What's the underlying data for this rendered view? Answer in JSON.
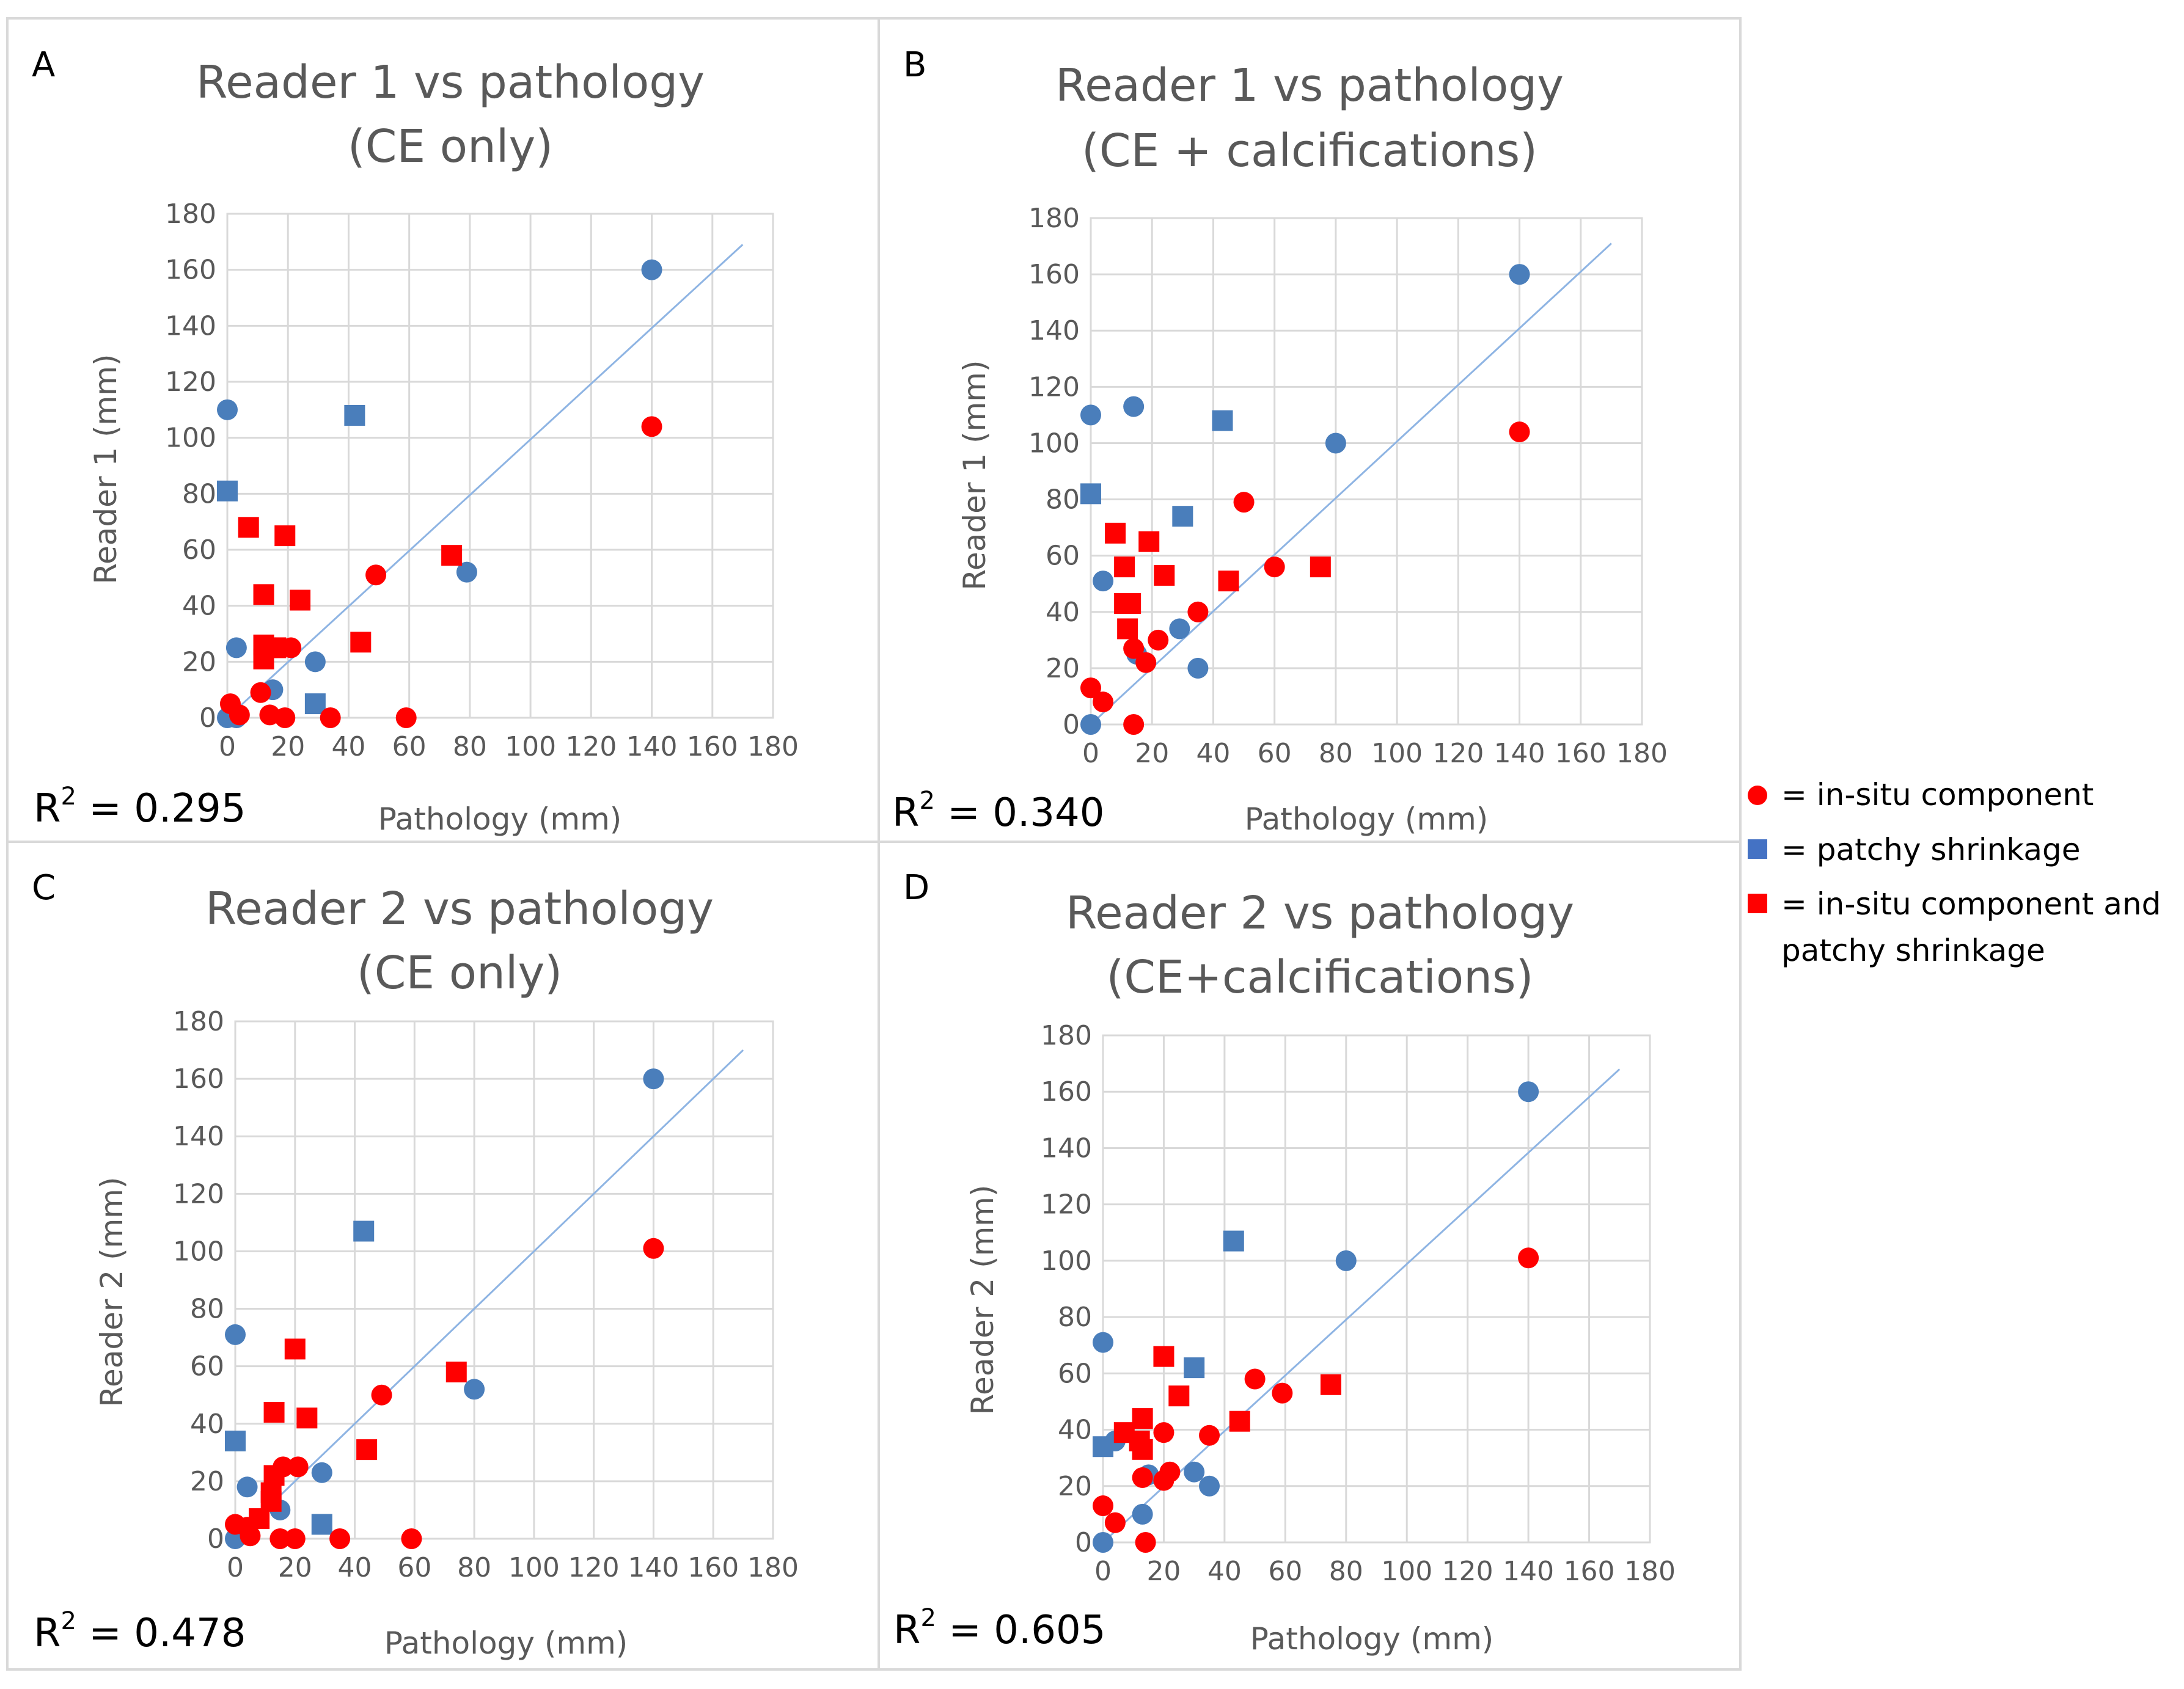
{
  "colors": {
    "blue": "#4a7ebb",
    "red": "#ff0000",
    "trendline": "#8eb4e3"
  },
  "legend": {
    "items": [
      {
        "symbol": "circle",
        "color": "#ff0000",
        "label": "= in-situ component"
      },
      {
        "symbol": "square",
        "color": "#4472c4",
        "label": "= patchy shrinkage"
      },
      {
        "symbol": "square",
        "color": "#ff0000",
        "label": "= in-situ component and",
        "label_line2": "patchy shrinkage"
      }
    ]
  },
  "chart_data": [
    {
      "panel": "A",
      "type": "scatter",
      "title_line1": "Reader 1 vs pathology",
      "title_line2": "(CE only)",
      "xlabel": "Pathology (mm)",
      "ylabel": "Reader 1 (mm)",
      "xlim": [
        0,
        180
      ],
      "ylim": [
        0,
        180
      ],
      "ticks": [
        0,
        20,
        40,
        60,
        80,
        100,
        120,
        140,
        160,
        180
      ],
      "r2_prefix": "R",
      "r2_sup": "2",
      "r2_value": " = 0.295",
      "trendline": [
        [
          0,
          0
        ],
        [
          170,
          169
        ]
      ],
      "series": [
        {
          "marker": "circle",
          "color": "blue",
          "points": [
            [
              0,
              110
            ],
            [
              140,
              160
            ],
            [
              79,
              52
            ],
            [
              3,
              25
            ],
            [
              0,
              0
            ],
            [
              3,
              0
            ],
            [
              15,
              10
            ],
            [
              16,
              25
            ],
            [
              29,
              20
            ]
          ]
        },
        {
          "marker": "square",
          "color": "blue",
          "points": [
            [
              0,
              81
            ],
            [
              42,
              108
            ],
            [
              29,
              5
            ]
          ]
        },
        {
          "marker": "circle",
          "color": "red",
          "points": [
            [
              140,
              104
            ],
            [
              49,
              51
            ],
            [
              21,
              25
            ],
            [
              11,
              9
            ],
            [
              1,
              5
            ],
            [
              4,
              1
            ],
            [
              14,
              1
            ],
            [
              19,
              0
            ],
            [
              34,
              0
            ],
            [
              59,
              0
            ]
          ]
        },
        {
          "marker": "square",
          "color": "red",
          "points": [
            [
              7,
              68
            ],
            [
              19,
              65
            ],
            [
              12,
              44
            ],
            [
              24,
              42
            ],
            [
              74,
              58
            ],
            [
              44,
              27
            ],
            [
              12,
              26
            ],
            [
              12,
              21
            ],
            [
              16,
              25
            ]
          ]
        }
      ]
    },
    {
      "panel": "B",
      "type": "scatter",
      "title_line1": "Reader 1 vs pathology",
      "title_line2": "(CE + calcifications)",
      "xlabel": "Pathology (mm)",
      "ylabel": "Reader 1 (mm)",
      "xlim": [
        0,
        180
      ],
      "ylim": [
        0,
        180
      ],
      "ticks": [
        0,
        20,
        40,
        60,
        80,
        100,
        120,
        140,
        160,
        180
      ],
      "r2_prefix": "R",
      "r2_sup": "2",
      "r2_value": " = 0.340",
      "trendline": [
        [
          0,
          0
        ],
        [
          170,
          171
        ]
      ],
      "series": [
        {
          "marker": "circle",
          "color": "blue",
          "points": [
            [
              0,
              110
            ],
            [
              14,
              113
            ],
            [
              140,
              160
            ],
            [
              80,
              100
            ],
            [
              4,
              51
            ],
            [
              29,
              34
            ],
            [
              35,
              20
            ],
            [
              15,
              25
            ],
            [
              0,
              0
            ]
          ]
        },
        {
          "marker": "square",
          "color": "blue",
          "points": [
            [
              0,
              82
            ],
            [
              43,
              108
            ],
            [
              30,
              74
            ]
          ]
        },
        {
          "marker": "circle",
          "color": "red",
          "points": [
            [
              140,
              104
            ],
            [
              50,
              79
            ],
            [
              60,
              56
            ],
            [
              35,
              40
            ],
            [
              22,
              30
            ],
            [
              18,
              22
            ],
            [
              14,
              27
            ],
            [
              0,
              13
            ],
            [
              4,
              8
            ],
            [
              14,
              0
            ]
          ]
        },
        {
          "marker": "square",
          "color": "red",
          "points": [
            [
              8,
              68
            ],
            [
              19,
              65
            ],
            [
              11,
              56
            ],
            [
              24,
              53
            ],
            [
              45,
              51
            ],
            [
              75,
              56
            ],
            [
              11,
              43
            ],
            [
              13,
              43
            ],
            [
              12,
              34
            ]
          ]
        }
      ]
    },
    {
      "panel": "C",
      "type": "scatter",
      "title_line1": "Reader 2 vs pathology",
      "title_line2": "(CE only)",
      "xlabel": "Pathology (mm)",
      "ylabel": "Reader 2 (mm)",
      "xlim": [
        0,
        180
      ],
      "ylim": [
        0,
        180
      ],
      "ticks": [
        0,
        20,
        40,
        60,
        80,
        100,
        120,
        140,
        160,
        180
      ],
      "r2_prefix": "R",
      "r2_sup": "2",
      "r2_value": " = 0.478",
      "trendline": [
        [
          0,
          0
        ],
        [
          170,
          170
        ]
      ],
      "series": [
        {
          "marker": "circle",
          "color": "blue",
          "points": [
            [
              0,
              71
            ],
            [
              140,
              160
            ],
            [
              80,
              52
            ],
            [
              4,
              18
            ],
            [
              15,
              10
            ],
            [
              29,
              23
            ],
            [
              0,
              0
            ]
          ]
        },
        {
          "marker": "square",
          "color": "blue",
          "points": [
            [
              0,
              34
            ],
            [
              43,
              107
            ],
            [
              29,
              5
            ]
          ]
        },
        {
          "marker": "circle",
          "color": "red",
          "points": [
            [
              140,
              101
            ],
            [
              49,
              50
            ],
            [
              21,
              25
            ],
            [
              16,
              25
            ],
            [
              0,
              5
            ],
            [
              4,
              4
            ],
            [
              15,
              0
            ],
            [
              20,
              0
            ],
            [
              35,
              0
            ],
            [
              59,
              0
            ],
            [
              5,
              1
            ]
          ]
        },
        {
          "marker": "square",
          "color": "red",
          "points": [
            [
              20,
              66
            ],
            [
              13,
              44
            ],
            [
              24,
              42
            ],
            [
              74,
              58
            ],
            [
              44,
              31
            ],
            [
              13,
              22
            ],
            [
              12,
              16
            ],
            [
              8,
              7
            ],
            [
              12,
              13
            ]
          ]
        }
      ]
    },
    {
      "panel": "D",
      "type": "scatter",
      "title_line1": "Reader 2 vs pathology",
      "title_line2": "(CE+calcifications)",
      "xlabel": "Pathology (mm)",
      "ylabel": "Reader 2 (mm)",
      "xlim": [
        0,
        180
      ],
      "ylim": [
        0,
        180
      ],
      "ticks": [
        0,
        20,
        40,
        60,
        80,
        100,
        120,
        140,
        160,
        180
      ],
      "r2_prefix": "R",
      "r2_sup": "2",
      "r2_value": " = 0.605",
      "trendline": [
        [
          0,
          0
        ],
        [
          170,
          168
        ]
      ],
      "series": [
        {
          "marker": "circle",
          "color": "blue",
          "points": [
            [
              0,
              71
            ],
            [
              140,
              160
            ],
            [
              80,
              100
            ],
            [
              4,
              36
            ],
            [
              13,
              10
            ],
            [
              15,
              24
            ],
            [
              30,
              25
            ],
            [
              35,
              20
            ],
            [
              0,
              0
            ]
          ]
        },
        {
          "marker": "square",
          "color": "blue",
          "points": [
            [
              0,
              34
            ],
            [
              43,
              107
            ],
            [
              30,
              62
            ]
          ]
        },
        {
          "marker": "circle",
          "color": "red",
          "points": [
            [
              140,
              101
            ],
            [
              50,
              58
            ],
            [
              59,
              53
            ],
            [
              35,
              38
            ],
            [
              20,
              39
            ],
            [
              22,
              25
            ],
            [
              20,
              22
            ],
            [
              13,
              23
            ],
            [
              0,
              13
            ],
            [
              4,
              7
            ],
            [
              14,
              0
            ]
          ]
        },
        {
          "marker": "square",
          "color": "red",
          "points": [
            [
              20,
              66
            ],
            [
              25,
              52
            ],
            [
              13,
              44
            ],
            [
              7,
              39
            ],
            [
              13,
              33
            ],
            [
              45,
              43
            ],
            [
              75,
              56
            ],
            [
              12,
              36
            ]
          ]
        }
      ]
    }
  ]
}
